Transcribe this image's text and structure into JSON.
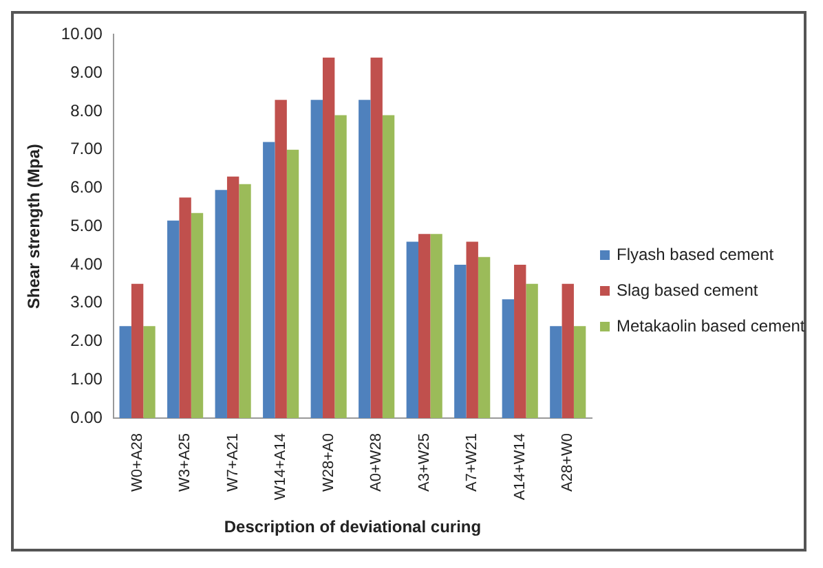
{
  "chart_data": {
    "type": "bar",
    "xlabel": "Description of deviational curing",
    "ylabel": "Shear strength (Mpa)",
    "categories": [
      "W0+A28",
      "W3+A25",
      "W7+A21",
      "W14+A14",
      "W28+A0",
      "A0+W28",
      "A3+W25",
      "A7+W21",
      "A14+W14",
      "A28+W0"
    ],
    "series": [
      {
        "name": "Flyash based cement",
        "color": "#4f81bd",
        "values": [
          2.4,
          5.15,
          5.95,
          7.2,
          8.3,
          8.3,
          4.6,
          4.0,
          3.1,
          2.4
        ]
      },
      {
        "name": "Slag based cement",
        "color": "#c0504d",
        "values": [
          3.5,
          5.75,
          6.3,
          8.3,
          9.4,
          9.4,
          4.8,
          4.6,
          4.0,
          3.5
        ]
      },
      {
        "name": "Metakaolin based cement",
        "color": "#9bbb59",
        "values": [
          2.4,
          5.35,
          6.1,
          7.0,
          7.9,
          7.9,
          4.8,
          4.2,
          3.5,
          2.4
        ]
      }
    ],
    "ylim": [
      0,
      10
    ],
    "yticks": [
      {
        "value": 0,
        "label": "0.00"
      },
      {
        "value": 1,
        "label": "1.00"
      },
      {
        "value": 2,
        "label": "2.00"
      },
      {
        "value": 3,
        "label": "3.00"
      },
      {
        "value": 4,
        "label": "4.00"
      },
      {
        "value": 5,
        "label": "5.00"
      },
      {
        "value": 6,
        "label": "6.00"
      },
      {
        "value": 7,
        "label": "7.00"
      },
      {
        "value": 8,
        "label": "8.00"
      },
      {
        "value": 9,
        "label": "9.00"
      },
      {
        "value": 10,
        "label": "10.00"
      }
    ],
    "grid": false,
    "legend": "right"
  }
}
